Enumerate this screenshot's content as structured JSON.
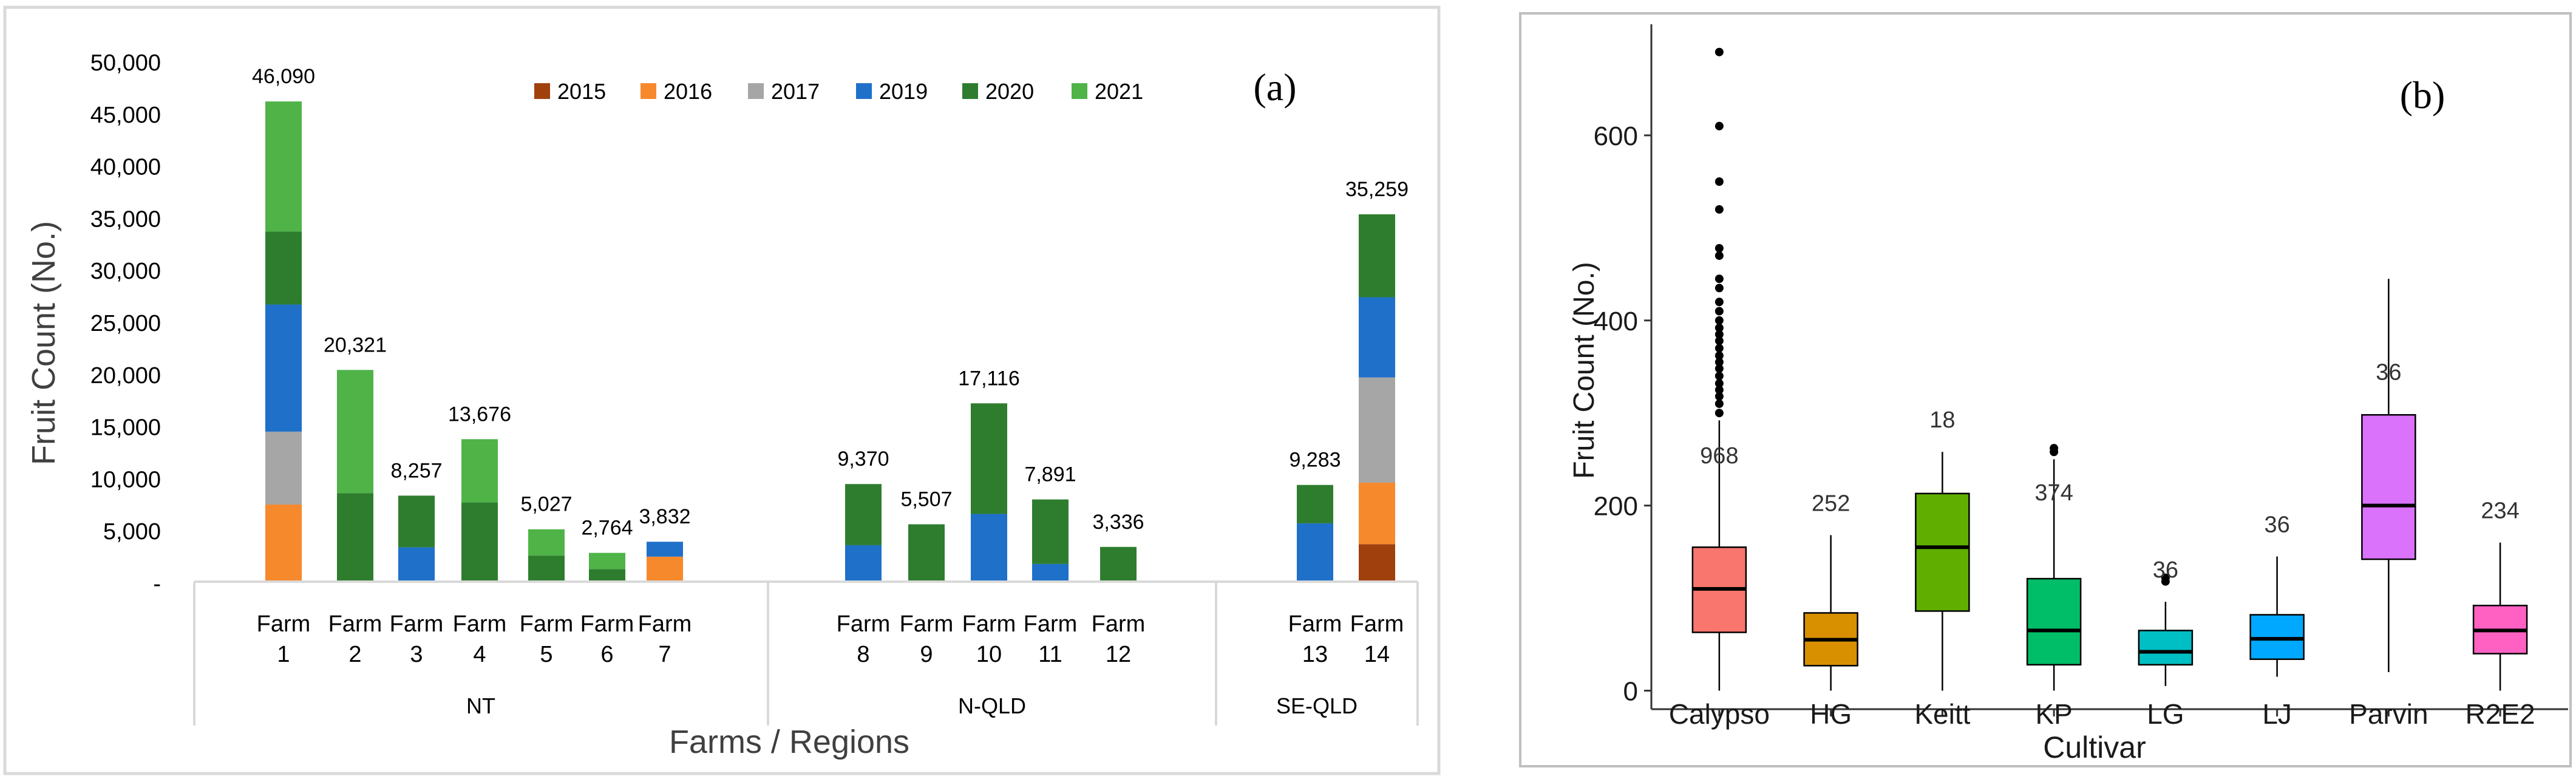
{
  "chart_data": [
    {
      "type": "bar",
      "stacked": true,
      "panel_label": "(a)",
      "title": "",
      "ylabel": "Fruit Count (No.)",
      "xlabel": "Farms / Regions",
      "ylim": [
        0,
        50000
      ],
      "y_ticks": [
        {
          "value": 0,
          "label": "-"
        },
        {
          "value": 5000,
          "label": "5,000"
        },
        {
          "value": 10000,
          "label": "10,000"
        },
        {
          "value": 15000,
          "label": "15,000"
        },
        {
          "value": 20000,
          "label": "20,000"
        },
        {
          "value": 25000,
          "label": "25,000"
        },
        {
          "value": 30000,
          "label": "30,000"
        },
        {
          "value": 35000,
          "label": "35,000"
        },
        {
          "value": 40000,
          "label": "40,000"
        },
        {
          "value": 45000,
          "label": "45,000"
        },
        {
          "value": 50000,
          "label": "50,000"
        }
      ],
      "legend": [
        "2015",
        "2016",
        "2017",
        "2019",
        "2020",
        "2021"
      ],
      "legend_position": "top-right",
      "colors": {
        "2015": "#a0410d",
        "2016": "#f7892d",
        "2017": "#a6a6a6",
        "2019": "#1f70c9",
        "2020": "#2e7d2e",
        "2021": "#4fb348"
      },
      "regions": [
        {
          "name": "NT",
          "farms": [
            "1",
            "2",
            "3",
            "4",
            "5",
            "6",
            "7"
          ]
        },
        {
          "name": "N-QLD",
          "farms": [
            "8",
            "9",
            "10",
            "11",
            "12"
          ]
        },
        {
          "name": "SE-QLD",
          "farms": [
            "13",
            "14"
          ]
        }
      ],
      "farm_word": "Farm",
      "farms": [
        {
          "id": "1",
          "total_label": "46,090",
          "segments": {
            "2015": 0,
            "2016": 7400,
            "2017": 7000,
            "2019": 12200,
            "2020": 7000,
            "2021": 12490
          }
        },
        {
          "id": "2",
          "total_label": "20,321",
          "segments": {
            "2015": 0,
            "2016": 0,
            "2017": 0,
            "2019": 0,
            "2020": 8500,
            "2021": 11821
          }
        },
        {
          "id": "3",
          "total_label": "8,257",
          "segments": {
            "2015": 0,
            "2016": 0,
            "2017": 0,
            "2019": 3300,
            "2020": 4957,
            "2021": 0
          }
        },
        {
          "id": "4",
          "total_label": "13,676",
          "segments": {
            "2015": 0,
            "2016": 0,
            "2017": 0,
            "2019": 0,
            "2020": 7600,
            "2021": 6076
          }
        },
        {
          "id": "5",
          "total_label": "5,027",
          "segments": {
            "2015": 0,
            "2016": 0,
            "2017": 0,
            "2019": 0,
            "2020": 2500,
            "2021": 2527
          }
        },
        {
          "id": "6",
          "total_label": "2,764",
          "segments": {
            "2015": 0,
            "2016": 0,
            "2017": 0,
            "2019": 0,
            "2020": 1200,
            "2021": 1564
          }
        },
        {
          "id": "7",
          "total_label": "3,832",
          "segments": {
            "2015": 0,
            "2016": 2400,
            "2017": 0,
            "2019": 1432,
            "2020": 0,
            "2021": 0
          }
        },
        {
          "id": "8",
          "total_label": "9,370",
          "segments": {
            "2015": 0,
            "2016": 0,
            "2017": 0,
            "2019": 3500,
            "2020": 5870,
            "2021": 0
          }
        },
        {
          "id": "9",
          "total_label": "5,507",
          "segments": {
            "2015": 0,
            "2016": 0,
            "2017": 0,
            "2019": 0,
            "2020": 5507,
            "2021": 0
          }
        },
        {
          "id": "10",
          "total_label": "17,116",
          "segments": {
            "2015": 0,
            "2016": 0,
            "2017": 0,
            "2019": 6500,
            "2020": 10616,
            "2021": 0
          }
        },
        {
          "id": "11",
          "total_label": "7,891",
          "segments": {
            "2015": 0,
            "2016": 0,
            "2017": 0,
            "2019": 1700,
            "2020": 6191,
            "2021": 0
          }
        },
        {
          "id": "12",
          "total_label": "3,336",
          "segments": {
            "2015": 0,
            "2016": 0,
            "2017": 0,
            "2019": 0,
            "2020": 3336,
            "2021": 0
          }
        },
        {
          "id": "13",
          "total_label": "9,283",
          "segments": {
            "2015": 0,
            "2016": 0,
            "2017": 0,
            "2019": 5600,
            "2020": 3683,
            "2021": 0
          }
        },
        {
          "id": "14",
          "total_label": "35,259",
          "segments": {
            "2015": 3600,
            "2016": 5900,
            "2017": 10100,
            "2019": 7700,
            "2020": 7959,
            "2021": 0
          }
        }
      ]
    },
    {
      "type": "box",
      "panel_label": "(b)",
      "title": "",
      "ylabel": "Fruit Count (No.)",
      "xlabel": "Cultivar",
      "ylim": [
        -20,
        720
      ],
      "y_ticks": [
        0,
        200,
        400,
        600
      ],
      "series": [
        {
          "name": "Calypso",
          "color": "#f8766d",
          "n_label": "968",
          "min": 0,
          "q1": 63,
          "median": 110,
          "q3": 155,
          "max": 292,
          "outliers": [
            300,
            310,
            318,
            325,
            332,
            340,
            348,
            355,
            362,
            370,
            378,
            385,
            392,
            400,
            410,
            420,
            435,
            445,
            470,
            478,
            520,
            550,
            610,
            690
          ]
        },
        {
          "name": "HG",
          "color": "#d89000",
          "n_label": "252",
          "min": 0,
          "q1": 27,
          "median": 55,
          "q3": 84,
          "max": 168,
          "outliers": []
        },
        {
          "name": "Keitt",
          "color": "#5fae00",
          "n_label": "18",
          "min": 0,
          "q1": 86,
          "median": 155,
          "q3": 213,
          "max": 258,
          "outliers": []
        },
        {
          "name": "KP",
          "color": "#00be67",
          "n_label": "374",
          "min": 0,
          "q1": 28,
          "median": 65,
          "q3": 121,
          "max": 250,
          "outliers": [
            258,
            262
          ]
        },
        {
          "name": "LG",
          "color": "#00bfc4",
          "n_label": "36",
          "min": 5,
          "q1": 28,
          "median": 42,
          "q3": 65,
          "max": 96,
          "outliers": [
            118,
            122
          ]
        },
        {
          "name": "LJ",
          "color": "#00a9ff",
          "n_label": "36",
          "min": 15,
          "q1": 34,
          "median": 56,
          "q3": 82,
          "max": 145,
          "outliers": []
        },
        {
          "name": "Parvin",
          "color": "#da72fb",
          "n_label": "36",
          "min": 20,
          "q1": 142,
          "median": 200,
          "q3": 298,
          "max": 445,
          "outliers": []
        },
        {
          "name": "R2E2",
          "color": "#ff61c3",
          "n_label": "234",
          "min": 0,
          "q1": 40,
          "median": 65,
          "q3": 92,
          "max": 160,
          "outliers": []
        }
      ]
    }
  ]
}
